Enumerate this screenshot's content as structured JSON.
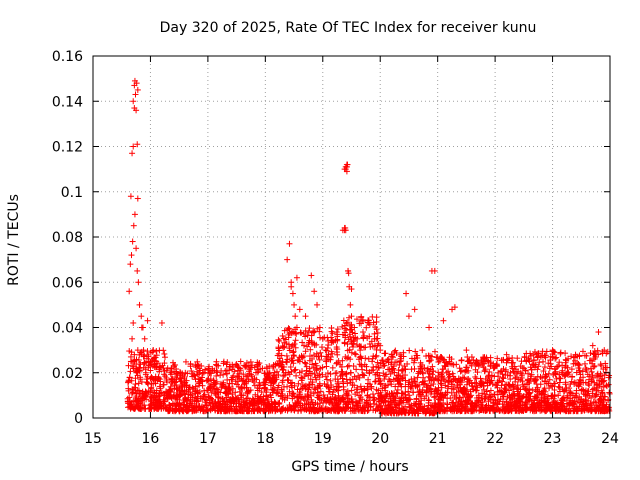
{
  "chart_data": {
    "type": "scatter",
    "title": "Day 320 of 2025, Rate Of TEC Index for receiver kunu",
    "xlabel": "GPS time / hours",
    "ylabel": "ROTI / TECUs",
    "xlim": [
      15,
      24
    ],
    "ylim": [
      0,
      0.16
    ],
    "xticks": [
      15,
      16,
      17,
      18,
      19,
      20,
      21,
      22,
      23,
      24
    ],
    "yticks": [
      0,
      0.02,
      0.04,
      0.06,
      0.08,
      0.1,
      0.12,
      0.14,
      0.16
    ],
    "xtick_labels": [
      "15",
      "16",
      "17",
      "18",
      "19",
      "20",
      "21",
      "22",
      "23",
      "24"
    ],
    "ytick_labels": [
      "0",
      "0.02",
      "0.04",
      "0.06",
      "0.08",
      "0.1",
      "0.12",
      "0.14",
      "0.16"
    ],
    "grid": true,
    "marker": "+",
    "color": "#ff0000",
    "series": [
      {
        "name": "ROTI",
        "x": [
          15.62,
          15.64,
          15.66,
          15.68,
          15.7,
          15.72,
          15.74,
          15.76,
          15.78,
          15.8,
          15.82,
          15.85,
          15.88,
          15.92,
          15.96,
          16.0,
          15.63,
          15.65,
          15.67,
          15.69,
          15.71,
          15.73,
          15.75,
          15.77,
          15.79,
          15.81,
          15.84,
          15.87,
          15.9,
          15.95,
          16.05,
          16.1,
          16.2,
          16.3,
          15.66,
          15.68,
          15.7,
          15.72,
          15.74,
          15.76,
          15.78,
          18.38,
          18.42,
          18.45,
          18.48,
          18.5,
          18.52,
          18.55,
          18.6,
          18.7,
          18.8,
          18.85,
          18.9,
          18.95,
          19.0,
          19.05,
          19.1,
          19.35,
          19.38,
          19.4,
          19.42,
          19.44,
          19.46,
          19.48,
          19.5,
          19.55,
          19.6,
          19.65,
          19.7,
          19.8,
          19.9,
          20.0,
          20.1,
          20.2,
          20.45,
          20.5,
          20.6,
          20.85,
          20.95,
          21.1,
          21.25,
          21.5,
          21.8,
          22.2,
          22.6,
          23.0,
          23.4,
          23.7,
          23.8,
          23.9,
          18.45,
          18.55,
          19.4,
          19.45,
          19.5,
          19.38,
          19.42,
          20.9,
          21.3,
          15.7,
          15.72,
          15.73,
          15.75,
          15.77,
          15.78,
          19.38,
          19.39,
          19.4,
          19.41,
          19.42,
          19.43,
          19.44
        ],
        "y": [
          0.012,
          0.018,
          0.025,
          0.035,
          0.042,
          0.028,
          0.015,
          0.02,
          0.03,
          0.022,
          0.018,
          0.04,
          0.03,
          0.02,
          0.015,
          0.012,
          0.056,
          0.068,
          0.072,
          0.078,
          0.085,
          0.09,
          0.075,
          0.065,
          0.06,
          0.05,
          0.045,
          0.04,
          0.035,
          0.043,
          0.03,
          0.025,
          0.042,
          0.022,
          0.098,
          0.117,
          0.12,
          0.137,
          0.143,
          0.148,
          0.145,
          0.07,
          0.077,
          0.06,
          0.055,
          0.05,
          0.045,
          0.04,
          0.048,
          0.045,
          0.063,
          0.056,
          0.05,
          0.04,
          0.035,
          0.03,
          0.028,
          0.083,
          0.11,
          0.111,
          0.112,
          0.065,
          0.058,
          0.05,
          0.045,
          0.04,
          0.035,
          0.03,
          0.038,
          0.042,
          0.035,
          0.03,
          0.025,
          0.028,
          0.055,
          0.045,
          0.048,
          0.04,
          0.065,
          0.043,
          0.048,
          0.03,
          0.025,
          0.028,
          0.025,
          0.03,
          0.028,
          0.032,
          0.038,
          0.03,
          0.058,
          0.062,
          0.083,
          0.064,
          0.057,
          0.084,
          0.109,
          0.065,
          0.049,
          0.14,
          0.147,
          0.149,
          0.136,
          0.121,
          0.097,
          0.083,
          0.084,
          0.11,
          0.111,
          0.111,
          0.112,
          0.065
        ]
      }
    ],
    "density_bands": [
      {
        "x_range": [
          15.6,
          16.3
        ],
        "y_range": [
          0.004,
          0.03
        ]
      },
      {
        "x_range": [
          16.3,
          18.2
        ],
        "y_range": [
          0.003,
          0.025
        ]
      },
      {
        "x_range": [
          18.2,
          19.3
        ],
        "y_range": [
          0.003,
          0.04
        ]
      },
      {
        "x_range": [
          19.3,
          20.0
        ],
        "y_range": [
          0.003,
          0.045
        ]
      },
      {
        "x_range": [
          20.0,
          21.0
        ],
        "y_range": [
          0.002,
          0.03
        ]
      },
      {
        "x_range": [
          21.0,
          22.5
        ],
        "y_range": [
          0.003,
          0.027
        ]
      },
      {
        "x_range": [
          22.5,
          24.0
        ],
        "y_range": [
          0.003,
          0.03
        ]
      }
    ]
  }
}
